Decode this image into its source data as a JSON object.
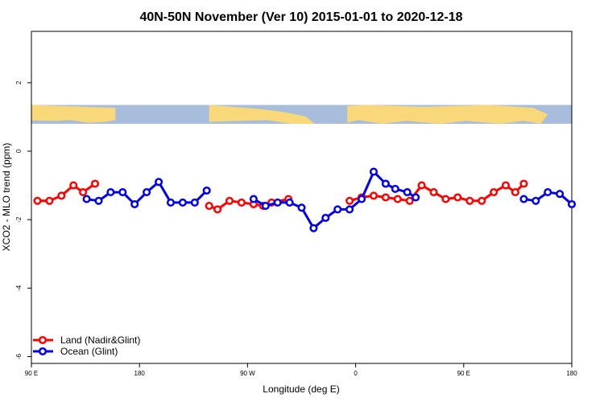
{
  "chart_data": {
    "type": "line",
    "title": "40N-50N November (Ver 10)   2015-01-01 to 2020-12-18",
    "xlabel": "Longitude (deg E)",
    "ylabel": "XCO2 - MLO trend (ppm)",
    "xlim": [
      90,
      540
    ],
    "ylim": [
      -6.2,
      3.5
    ],
    "x_ticks": [
      {
        "value": 90,
        "label": "90 E"
      },
      {
        "value": 180,
        "label": "180"
      },
      {
        "value": 270,
        "label": "90 W"
      },
      {
        "value": 360,
        "label": "0"
      },
      {
        "value": 450,
        "label": "90 E"
      },
      {
        "value": 540,
        "label": "180"
      }
    ],
    "y_ticks": [
      {
        "value": 2,
        "label": "2"
      },
      {
        "value": 0,
        "label": "0"
      },
      {
        "value": -2,
        "label": "-2"
      },
      {
        "value": -4,
        "label": "-4"
      },
      {
        "value": -6,
        "label": "-6"
      }
    ],
    "map_strip": {
      "ymin": 0.8,
      "ymax": 1.35,
      "land_color": "#f8d878",
      "ocean_color": "#a8bcdc"
    },
    "legend": {
      "position": "bottom-left"
    },
    "series": [
      {
        "name": "Land (Nadir&Glint)",
        "color": "#ff0000",
        "segments": [
          [
            [
              95,
              -1.45
            ],
            [
              105,
              -1.45
            ],
            [
              115,
              -1.3
            ],
            [
              125,
              -1.0
            ],
            [
              133,
              -1.2
            ],
            [
              143,
              -0.95
            ]
          ],
          [
            [
              238,
              -1.6
            ],
            [
              245,
              -1.7
            ],
            [
              255,
              -1.45
            ],
            [
              265,
              -1.5
            ],
            [
              275,
              -1.55
            ],
            [
              283,
              -1.6
            ],
            [
              290,
              -1.5
            ],
            [
              304,
              -1.4
            ]
          ],
          [
            [
              355,
              -1.45
            ],
            [
              365,
              -1.35
            ],
            [
              375,
              -1.3
            ],
            [
              385,
              -1.35
            ],
            [
              395,
              -1.4
            ],
            [
              405,
              -1.45
            ],
            [
              415,
              -1.0
            ],
            [
              425,
              -1.2
            ],
            [
              435,
              -1.4
            ],
            [
              445,
              -1.35
            ],
            [
              455,
              -1.45
            ],
            [
              465,
              -1.45
            ],
            [
              475,
              -1.2
            ],
            [
              485,
              -1.0
            ],
            [
              493,
              -1.2
            ],
            [
              500,
              -0.95
            ]
          ]
        ]
      },
      {
        "name": "Ocean (Glint)",
        "color": "#0000ee",
        "segments": [
          [
            [
              136,
              -1.4
            ],
            [
              146,
              -1.45
            ],
            [
              156,
              -1.2
            ],
            [
              166,
              -1.2
            ],
            [
              176,
              -1.55
            ],
            [
              186,
              -1.2
            ],
            [
              196,
              -0.9
            ],
            [
              206,
              -1.5
            ],
            [
              216,
              -1.5
            ],
            [
              226,
              -1.5
            ],
            [
              236,
              -1.15
            ]
          ],
          [
            [
              275,
              -1.4
            ],
            [
              285,
              -1.6
            ],
            [
              295,
              -1.5
            ],
            [
              305,
              -1.5
            ],
            [
              315,
              -1.65
            ],
            [
              325,
              -2.25
            ],
            [
              335,
              -1.95
            ],
            [
              345,
              -1.7
            ],
            [
              355,
              -1.7
            ],
            [
              365,
              -1.4
            ],
            [
              375,
              -0.6
            ],
            [
              385,
              -0.95
            ],
            [
              393,
              -1.1
            ],
            [
              403,
              -1.2
            ],
            [
              410,
              -1.35
            ]
          ],
          [
            [
              500,
              -1.4
            ],
            [
              510,
              -1.45
            ],
            [
              520,
              -1.2
            ],
            [
              530,
              -1.25
            ],
            [
              540,
              -1.55
            ]
          ]
        ]
      }
    ]
  }
}
